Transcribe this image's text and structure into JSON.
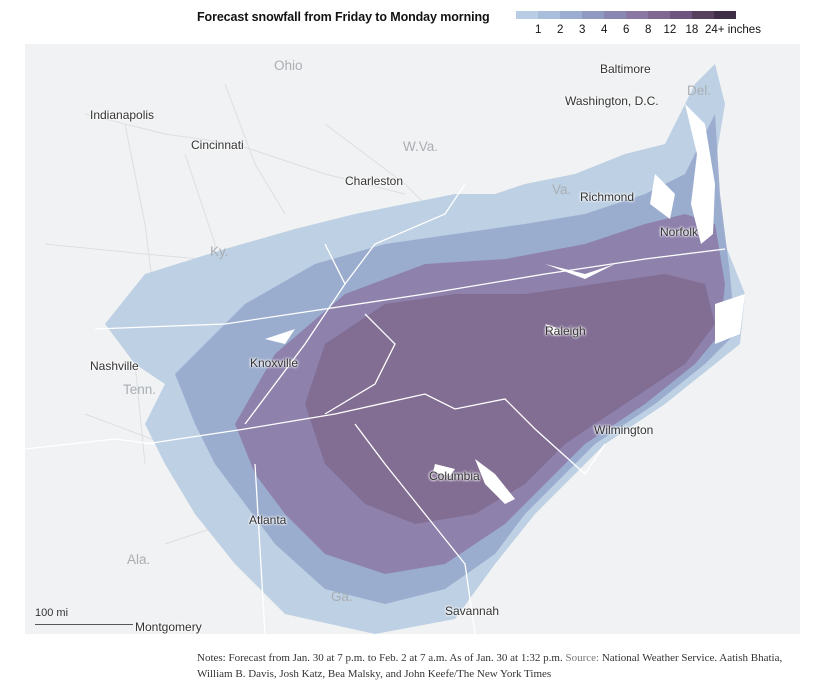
{
  "title": "Forecast snowfall from Friday to Monday morning",
  "legend": {
    "labels": [
      "1",
      "2",
      "3",
      "4",
      "6",
      "8",
      "12",
      "18",
      "24+ inches"
    ],
    "colors": [
      "#b8cde3",
      "#a9bedb",
      "#9aaccf",
      "#8f99c2",
      "#8a87b3",
      "#8a78a3",
      "#806792",
      "#6d5580",
      "#57415f",
      "#3f2f46"
    ]
  },
  "cities": [
    {
      "name": "Baltimore"
    },
    {
      "name": "Washington, D.C."
    },
    {
      "name": "Indianapolis"
    },
    {
      "name": "Cincinnati"
    },
    {
      "name": "Charleston"
    },
    {
      "name": "Richmond"
    },
    {
      "name": "Norfolk"
    },
    {
      "name": "Raleigh"
    },
    {
      "name": "Nashville"
    },
    {
      "name": "Knoxville"
    },
    {
      "name": "Wilmington"
    },
    {
      "name": "Columbia"
    },
    {
      "name": "Atlanta"
    },
    {
      "name": "Savannah"
    },
    {
      "name": "Montgomery"
    }
  ],
  "states": [
    {
      "name": "Ohio"
    },
    {
      "name": "W.Va."
    },
    {
      "name": "Del."
    },
    {
      "name": "Va."
    },
    {
      "name": "Ky."
    },
    {
      "name": "Tenn."
    },
    {
      "name": "Ala."
    },
    {
      "name": "Ga."
    }
  ],
  "scale_label": "100 mi",
  "notes": {
    "label": "Notes:",
    "text": "Forecast from Jan. 30 at 7 p.m. to Feb. 2 at 7 a.m. As of Jan. 30 at 1:32 p.m.",
    "source_label": "Source:",
    "source": "National Weather Service.",
    "credit": "Aatish Bhatia, William B. Davis, Josh Katz, Bea Malsky, and John Keefe/The New York Times"
  }
}
